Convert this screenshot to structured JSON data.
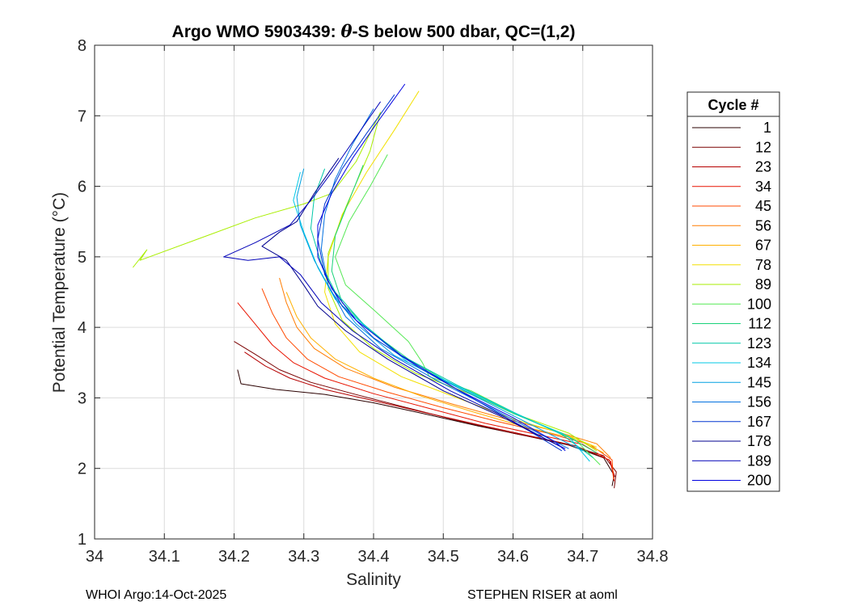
{
  "chart_data": {
    "type": "line",
    "title_prefix": "Argo WMO 5903439: ",
    "title_symbol": "θ",
    "title_suffix": "-S below 500 dbar,  QC=(1,2)",
    "xlabel": "Salinity",
    "ylabel": "Potential Temperature (°C)",
    "xlim": [
      34.0,
      34.8
    ],
    "ylim": [
      1,
      8
    ],
    "xticks": [
      34,
      34.1,
      34.2,
      34.3,
      34.4,
      34.5,
      34.6,
      34.7,
      34.8
    ],
    "xtick_labels": [
      "34",
      "34.1",
      "34.2",
      "34.3",
      "34.4",
      "34.5",
      "34.6",
      "34.7",
      "34.8"
    ],
    "yticks": [
      1,
      2,
      3,
      4,
      5,
      6,
      7,
      8
    ],
    "ytick_labels": [
      "1",
      "2",
      "3",
      "4",
      "5",
      "6",
      "7",
      "8"
    ],
    "grid": true,
    "legend_title": "Cycle #",
    "legend_position": "right-outside",
    "series": [
      {
        "name": "1",
        "color": "#2a0000",
        "points": [
          [
            34.205,
            3.4
          ],
          [
            34.21,
            3.2
          ],
          [
            34.26,
            3.12
          ],
          [
            34.33,
            3.05
          ],
          [
            34.4,
            2.93
          ],
          [
            34.47,
            2.78
          ],
          [
            34.55,
            2.6
          ],
          [
            34.62,
            2.46
          ],
          [
            34.68,
            2.33
          ],
          [
            34.73,
            2.15
          ],
          [
            34.745,
            1.9
          ],
          [
            34.742,
            1.75
          ]
        ]
      },
      {
        "name": "12",
        "color": "#7a0000",
        "points": [
          [
            34.2,
            3.8
          ],
          [
            34.23,
            3.62
          ],
          [
            34.265,
            3.4
          ],
          [
            34.31,
            3.22
          ],
          [
            34.37,
            3.06
          ],
          [
            34.44,
            2.88
          ],
          [
            34.52,
            2.68
          ],
          [
            34.6,
            2.5
          ],
          [
            34.67,
            2.36
          ],
          [
            34.73,
            2.18
          ],
          [
            34.748,
            1.95
          ],
          [
            34.745,
            1.72
          ]
        ]
      },
      {
        "name": "23",
        "color": "#b50000",
        "points": [
          [
            34.215,
            3.65
          ],
          [
            34.245,
            3.45
          ],
          [
            34.28,
            3.28
          ],
          [
            34.33,
            3.12
          ],
          [
            34.4,
            2.96
          ],
          [
            34.47,
            2.8
          ],
          [
            34.55,
            2.62
          ],
          [
            34.62,
            2.47
          ],
          [
            34.69,
            2.32
          ],
          [
            34.738,
            2.12
          ],
          [
            34.746,
            1.88
          ]
        ]
      },
      {
        "name": "34",
        "color": "#e81400",
        "points": [
          [
            34.205,
            4.35
          ],
          [
            34.23,
            4.05
          ],
          [
            34.255,
            3.75
          ],
          [
            34.285,
            3.5
          ],
          [
            34.33,
            3.28
          ],
          [
            34.4,
            3.06
          ],
          [
            34.48,
            2.85
          ],
          [
            34.56,
            2.64
          ],
          [
            34.63,
            2.49
          ],
          [
            34.7,
            2.34
          ],
          [
            34.74,
            2.1
          ],
          [
            34.745,
            1.82
          ]
        ]
      },
      {
        "name": "45",
        "color": "#ff4a00",
        "points": [
          [
            34.24,
            4.55
          ],
          [
            34.255,
            4.2
          ],
          [
            34.275,
            3.85
          ],
          [
            34.305,
            3.55
          ],
          [
            34.35,
            3.3
          ],
          [
            34.42,
            3.08
          ],
          [
            34.5,
            2.86
          ],
          [
            34.58,
            2.66
          ],
          [
            34.65,
            2.5
          ],
          [
            34.71,
            2.34
          ],
          [
            34.742,
            2.12
          ],
          [
            34.744,
            1.85
          ]
        ]
      },
      {
        "name": "56",
        "color": "#ff7c00",
        "points": [
          [
            34.265,
            4.7
          ],
          [
            34.275,
            4.35
          ],
          [
            34.29,
            4.0
          ],
          [
            34.315,
            3.7
          ],
          [
            34.36,
            3.42
          ],
          [
            34.43,
            3.15
          ],
          [
            34.51,
            2.92
          ],
          [
            34.59,
            2.7
          ],
          [
            34.66,
            2.53
          ],
          [
            34.72,
            2.35
          ],
          [
            34.74,
            2.15
          ]
        ]
      },
      {
        "name": "67",
        "color": "#ffb000",
        "points": [
          [
            34.275,
            4.5
          ],
          [
            34.29,
            4.15
          ],
          [
            34.31,
            3.85
          ],
          [
            34.345,
            3.55
          ],
          [
            34.4,
            3.28
          ],
          [
            34.47,
            3.02
          ],
          [
            34.55,
            2.78
          ],
          [
            34.62,
            2.58
          ],
          [
            34.69,
            2.42
          ],
          [
            34.73,
            2.22
          ]
        ]
      },
      {
        "name": "78",
        "color": "#f2e000",
        "points": [
          [
            34.465,
            7.35
          ],
          [
            34.43,
            6.8
          ],
          [
            34.39,
            6.2
          ],
          [
            34.355,
            5.6
          ],
          [
            34.335,
            5.0
          ],
          [
            34.33,
            4.5
          ],
          [
            34.345,
            4.05
          ],
          [
            34.38,
            3.65
          ],
          [
            34.44,
            3.3
          ],
          [
            34.52,
            3.0
          ],
          [
            34.6,
            2.7
          ],
          [
            34.67,
            2.5
          ],
          [
            34.72,
            2.3
          ]
        ]
      },
      {
        "name": "89",
        "color": "#a9ee00",
        "points": [
          [
            34.055,
            4.85
          ],
          [
            34.075,
            5.1
          ],
          [
            34.065,
            4.95
          ],
          [
            34.23,
            5.55
          ],
          [
            34.3,
            5.75
          ],
          [
            34.34,
            5.9
          ],
          [
            34.375,
            6.35
          ],
          [
            34.41,
            7.05
          ],
          [
            34.395,
            6.5
          ],
          [
            34.36,
            5.7
          ],
          [
            34.335,
            5.05
          ],
          [
            34.335,
            4.55
          ],
          [
            34.355,
            4.1
          ],
          [
            34.4,
            3.7
          ],
          [
            34.46,
            3.35
          ],
          [
            34.54,
            3.05
          ],
          [
            34.61,
            2.75
          ],
          [
            34.68,
            2.5
          ],
          [
            34.72,
            2.25
          ]
        ]
      },
      {
        "name": "100",
        "color": "#55e855",
        "points": [
          [
            34.42,
            6.45
          ],
          [
            34.395,
            6.0
          ],
          [
            34.365,
            5.5
          ],
          [
            34.345,
            5.0
          ],
          [
            34.36,
            4.6
          ],
          [
            34.4,
            4.25
          ],
          [
            34.45,
            3.8
          ],
          [
            34.47,
            3.5
          ],
          [
            34.48,
            3.3
          ],
          [
            34.54,
            3.1
          ],
          [
            34.56,
            3.0
          ],
          [
            34.62,
            2.7
          ],
          [
            34.69,
            2.4
          ],
          [
            34.725,
            2.05
          ]
        ]
      },
      {
        "name": "112",
        "color": "#1ad27a",
        "points": [
          [
            34.385,
            6.3
          ],
          [
            34.365,
            5.8
          ],
          [
            34.345,
            5.3
          ],
          [
            34.34,
            4.8
          ],
          [
            34.355,
            4.35
          ],
          [
            34.395,
            3.95
          ],
          [
            34.45,
            3.55
          ],
          [
            34.52,
            3.15
          ],
          [
            34.6,
            2.78
          ],
          [
            34.67,
            2.5
          ],
          [
            34.72,
            2.22
          ]
        ]
      },
      {
        "name": "123",
        "color": "#00c7a8",
        "points": [
          [
            34.33,
            6.25
          ],
          [
            34.315,
            5.85
          ],
          [
            34.31,
            5.4
          ],
          [
            34.325,
            4.9
          ],
          [
            34.345,
            4.5
          ],
          [
            34.385,
            4.05
          ],
          [
            34.44,
            3.6
          ],
          [
            34.52,
            3.18
          ],
          [
            34.6,
            2.8
          ],
          [
            34.67,
            2.48
          ],
          [
            34.715,
            2.15
          ]
        ]
      },
      {
        "name": "134",
        "color": "#00c8e6",
        "points": [
          [
            34.295,
            6.2
          ],
          [
            34.285,
            5.8
          ],
          [
            34.3,
            5.35
          ],
          [
            34.32,
            4.85
          ],
          [
            34.345,
            4.4
          ],
          [
            34.395,
            3.95
          ],
          [
            34.45,
            3.5
          ],
          [
            34.53,
            3.12
          ],
          [
            34.61,
            2.75
          ],
          [
            34.68,
            2.45
          ],
          [
            34.71,
            2.1
          ]
        ]
      },
      {
        "name": "145",
        "color": "#00a0e0",
        "points": [
          [
            34.3,
            6.25
          ],
          [
            34.29,
            5.85
          ],
          [
            34.295,
            5.45
          ],
          [
            34.315,
            4.95
          ],
          [
            34.34,
            4.5
          ],
          [
            34.375,
            4.05
          ],
          [
            34.43,
            3.6
          ],
          [
            34.51,
            3.2
          ],
          [
            34.59,
            2.8
          ],
          [
            34.66,
            2.45
          ],
          [
            34.7,
            2.25
          ]
        ]
      },
      {
        "name": "156",
        "color": "#0070e0",
        "points": [
          [
            34.4,
            7.1
          ],
          [
            34.37,
            6.6
          ],
          [
            34.345,
            6.1
          ],
          [
            34.33,
            5.6
          ],
          [
            34.325,
            5.1
          ],
          [
            34.335,
            4.6
          ],
          [
            34.36,
            4.15
          ],
          [
            34.41,
            3.7
          ],
          [
            34.49,
            3.25
          ],
          [
            34.57,
            2.85
          ],
          [
            34.64,
            2.48
          ],
          [
            34.68,
            2.28
          ]
        ]
      },
      {
        "name": "167",
        "color": "#0035d0",
        "points": [
          [
            34.43,
            7.3
          ],
          [
            34.39,
            6.75
          ],
          [
            34.355,
            6.25
          ],
          [
            34.33,
            5.75
          ],
          [
            34.32,
            5.25
          ],
          [
            34.33,
            4.75
          ],
          [
            34.355,
            4.3
          ],
          [
            34.4,
            3.85
          ],
          [
            34.47,
            3.4
          ],
          [
            34.55,
            2.95
          ],
          [
            34.62,
            2.55
          ],
          [
            34.67,
            2.25
          ]
        ]
      },
      {
        "name": "178",
        "color": "#00008f",
        "points": [
          [
            34.35,
            6.4
          ],
          [
            34.315,
            5.9
          ],
          [
            34.29,
            5.5
          ],
          [
            34.265,
            5.35
          ],
          [
            34.24,
            5.15
          ],
          [
            34.275,
            4.95
          ],
          [
            34.3,
            4.6
          ],
          [
            34.32,
            4.3
          ],
          [
            34.36,
            3.95
          ],
          [
            34.42,
            3.55
          ],
          [
            34.5,
            3.1
          ],
          [
            34.58,
            2.75
          ],
          [
            34.64,
            2.45
          ],
          [
            34.67,
            2.3
          ]
        ]
      },
      {
        "name": "189",
        "color": "#0000b8",
        "points": [
          [
            34.41,
            7.2
          ],
          [
            34.375,
            6.7
          ],
          [
            34.34,
            6.2
          ],
          [
            34.31,
            5.8
          ],
          [
            34.28,
            5.45
          ],
          [
            34.23,
            5.2
          ],
          [
            34.185,
            5.0
          ],
          [
            34.22,
            4.95
          ],
          [
            34.265,
            5.0
          ],
          [
            34.295,
            4.75
          ],
          [
            34.325,
            4.35
          ],
          [
            34.37,
            3.95
          ],
          [
            34.43,
            3.55
          ],
          [
            34.51,
            3.1
          ],
          [
            34.59,
            2.72
          ],
          [
            34.65,
            2.4
          ],
          [
            34.675,
            2.28
          ]
        ]
      },
      {
        "name": "200",
        "color": "#0000e0",
        "points": [
          [
            34.445,
            7.45
          ],
          [
            34.405,
            6.9
          ],
          [
            34.37,
            6.4
          ],
          [
            34.34,
            5.9
          ],
          [
            34.32,
            5.45
          ],
          [
            34.32,
            5.0
          ],
          [
            34.34,
            4.55
          ],
          [
            34.375,
            4.1
          ],
          [
            34.44,
            3.6
          ],
          [
            34.52,
            3.12
          ],
          [
            34.6,
            2.72
          ],
          [
            34.66,
            2.38
          ],
          [
            34.675,
            2.25
          ]
        ]
      }
    ]
  },
  "footer": {
    "left": "WHOI Argo:14-Oct-2025",
    "right": "STEPHEN RISER at aoml"
  }
}
